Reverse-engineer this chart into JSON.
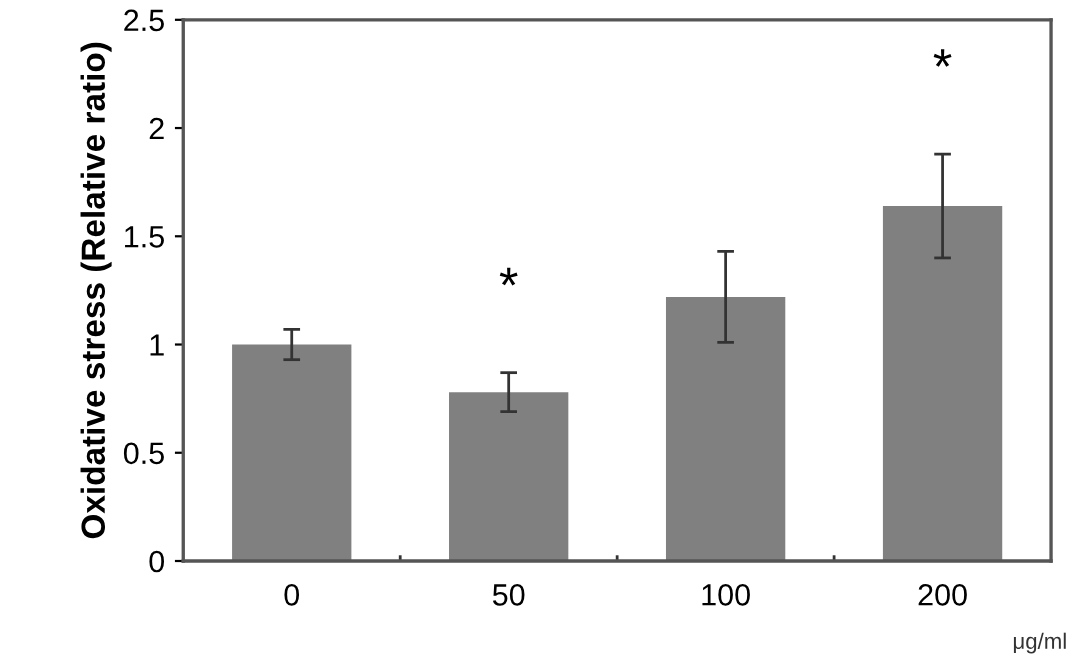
{
  "chart_data": {
    "type": "bar",
    "xlabel": "μg/ml",
    "ylabel": "Oxidative stress (Relative ratio)",
    "categories": [
      "0",
      "50",
      "100",
      "200"
    ],
    "values": [
      1.0,
      0.78,
      1.22,
      1.64
    ],
    "errors": [
      0.07,
      0.09,
      0.21,
      0.24
    ],
    "color": "#808080",
    "ylim": [
      0,
      2.5
    ],
    "yticks": [
      0,
      {
        "value": 0.5,
        "label": "0.5"
      },
      1,
      {
        "value": 1.5,
        "label": "1.5"
      },
      2,
      {
        "value": 2.5,
        "label": "2.5"
      }
    ],
    "value_labels": [
      null,
      "*",
      null,
      "*"
    ],
    "grid": false
  }
}
